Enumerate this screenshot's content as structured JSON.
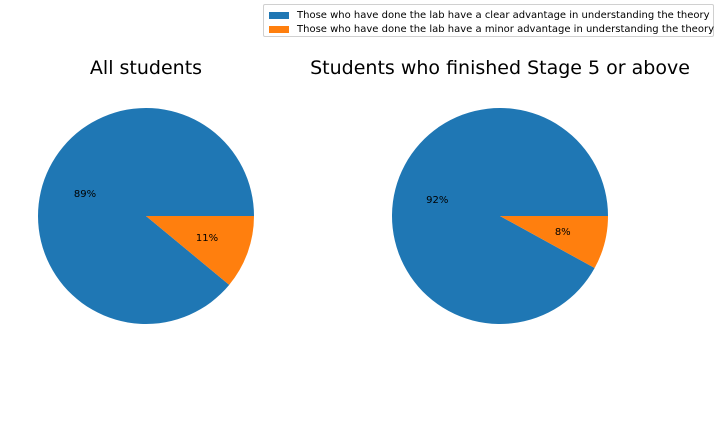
{
  "legend": {
    "items": [
      {
        "label": "Those who have done the lab have a clear advantage in understanding the theory",
        "color": "#1f77b4"
      },
      {
        "label": "Those who have done the lab have a minor advantage in understanding the theory",
        "color": "#ff7f0e"
      }
    ]
  },
  "chart_data": [
    {
      "type": "pie",
      "title": "All students",
      "categories": [
        "Those who have done the lab have a clear advantage in understanding the theory",
        "Those who have done the lab have a minor advantage in understanding the theory"
      ],
      "values": [
        89,
        11
      ],
      "labels": [
        "89%",
        "11%"
      ],
      "colors": [
        "#1f77b4",
        "#ff7f0e"
      ]
    },
    {
      "type": "pie",
      "title": "Students who finished Stage 5 or above",
      "categories": [
        "Those who have done the lab have a clear advantage in understanding the theory",
        "Those who have done the lab have a minor advantage in understanding the theory"
      ],
      "values": [
        92,
        8
      ],
      "labels": [
        "92%",
        "8%"
      ],
      "colors": [
        "#1f77b4",
        "#ff7f0e"
      ]
    }
  ]
}
